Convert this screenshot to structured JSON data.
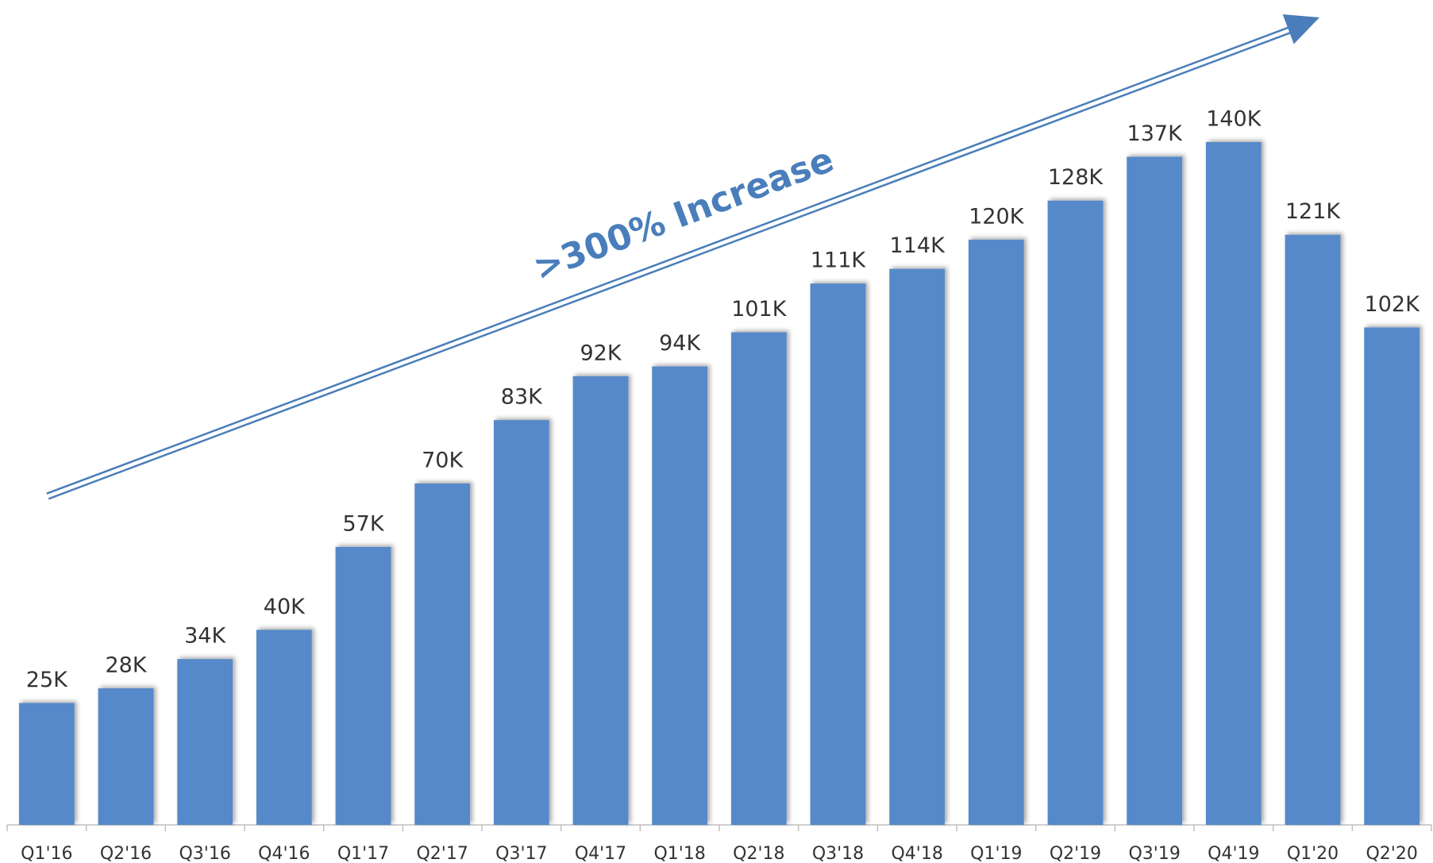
{
  "chart_data": {
    "type": "bar",
    "categories": [
      "Q1'16",
      "Q2'16",
      "Q3'16",
      "Q4'16",
      "Q1'17",
      "Q2'17",
      "Q3'17",
      "Q4'17",
      "Q1'18",
      "Q2'18",
      "Q3'18",
      "Q4'18",
      "Q1'19",
      "Q2'19",
      "Q3'19",
      "Q4'19",
      "Q1'20",
      "Q2'20"
    ],
    "values": [
      25,
      28,
      34,
      40,
      57,
      70,
      83,
      92,
      94,
      101,
      111,
      114,
      120,
      128,
      137,
      140,
      121,
      102
    ],
    "value_labels": [
      "25K",
      "28K",
      "34K",
      "40K",
      "57K",
      "70K",
      "83K",
      "92K",
      "94K",
      "101K",
      "111K",
      "114K",
      "120K",
      "128K",
      "137K",
      "140K",
      "121K",
      "102K"
    ],
    "color": "#5589c9",
    "annotation": ">300% Increase",
    "annotation_color": "#4a7ebb"
  }
}
